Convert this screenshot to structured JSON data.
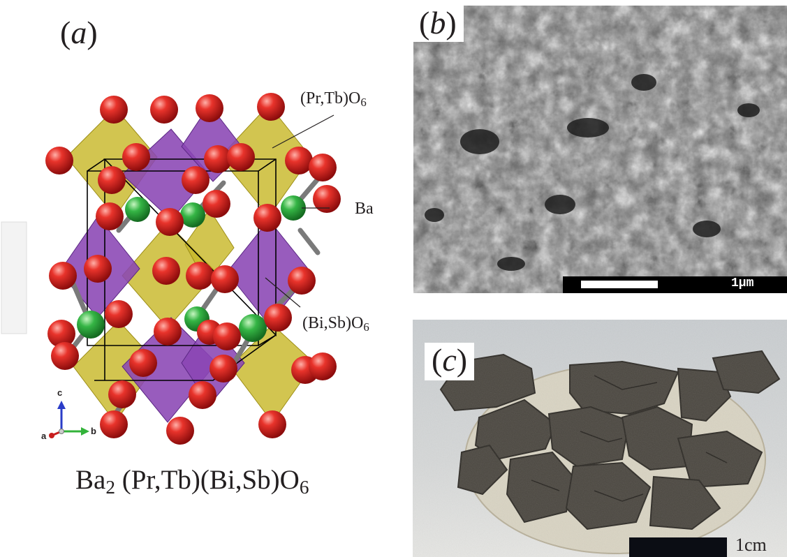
{
  "panel_a": {
    "label_open": "(",
    "label_letter": "a",
    "label_close": ")",
    "callouts": {
      "pr_tb_main": "(Pr,Tb)O",
      "pr_tb_sub": "6",
      "ba": "Ba",
      "bi_sb_main": "(Bi,Sb)O",
      "bi_sb_sub": "6"
    },
    "axes": {
      "c": "c",
      "a": "a",
      "b": "b"
    },
    "formula": {
      "ba": "Ba",
      "ba_sub": "2",
      "middle": " (Pr,Tb)(Bi,Sb)O",
      "o_sub": "6"
    },
    "colors": {
      "oxygen": "#d81e1e",
      "barium": "#2fae3c",
      "pr_tb_octahedra": "#c8b82a",
      "bi_sb_octahedra": "#8a46b4"
    }
  },
  "panel_b": {
    "label_open": "(",
    "label_letter": "b",
    "label_close": ")",
    "scale_text": "1µm",
    "image_kind": "SEM micrograph (grey granular particles)"
  },
  "panel_c": {
    "label_open": "(",
    "label_letter": "c",
    "label_close": ")",
    "scale_text": "1cm",
    "image_kind": "photograph of cracked dark pellet fragments"
  }
}
